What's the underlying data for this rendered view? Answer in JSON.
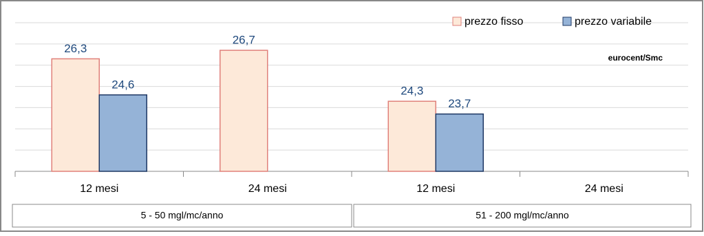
{
  "chart_data": {
    "type": "bar",
    "categories": [
      "12 mesi",
      "24 mesi",
      "12 mesi",
      "24 mesi"
    ],
    "groups": [
      "5 - 50 mgl/mc/anno",
      "51 - 200 mgl/mc/anno"
    ],
    "series": [
      {
        "name": "prezzo fisso",
        "color": "#fde9d9",
        "edge": "#e0807a",
        "values": [
          26.3,
          26.7,
          24.3,
          null
        ],
        "value_labels": [
          "26,3",
          "26,7",
          "24,3",
          null
        ]
      },
      {
        "name": "prezzo variabile",
        "color": "#95b3d7",
        "edge": "#1f3864",
        "values": [
          24.6,
          null,
          23.7,
          null
        ],
        "value_labels": [
          "24,6",
          null,
          "23,7",
          null
        ]
      }
    ],
    "annotation": "eurocent/Smc",
    "ylim": [
      21,
      28
    ],
    "yticks": [
      21,
      22,
      23,
      24,
      25,
      26,
      27,
      28
    ],
    "grid": true
  }
}
